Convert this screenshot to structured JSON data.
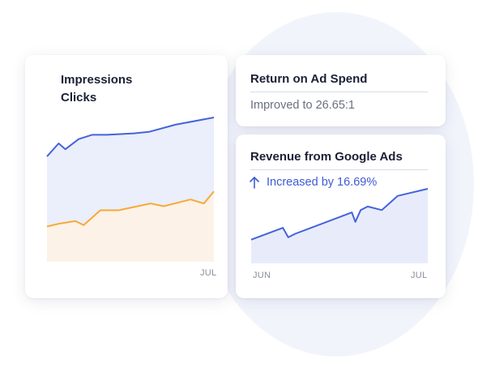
{
  "colors": {
    "impressions_line": "#4563da",
    "impressions_fill": "#ebeefb",
    "clicks_line": "#f7a935",
    "clicks_fill": "#fdf2e7",
    "revenue_line": "#4563da",
    "revenue_fill": "#e8ecfa",
    "increase_text": "#3f5bd3"
  },
  "left_card": {
    "legend": [
      "Impressions",
      "Clicks"
    ],
    "x_end_label": "JUL"
  },
  "roas_card": {
    "title": "Return on Ad Spend",
    "status": "Improved to 26.65:1"
  },
  "revenue_card": {
    "title": "Revenue from Google Ads",
    "status": "Increased by 16.69%",
    "status_icon": "arrow-up-icon",
    "x_start_label": "JUN",
    "x_end_label": "JUL"
  },
  "chart_data": [
    {
      "type": "area",
      "title": "",
      "x_labels": [
        "JUL"
      ],
      "ylim": [
        0,
        100
      ],
      "series": [
        {
          "name": "Impressions",
          "x": [
            0,
            7,
            11,
            19,
            27,
            36,
            52,
            61,
            77,
            100
          ],
          "values": [
            73,
            82,
            78,
            85,
            88,
            88,
            89,
            90,
            95,
            100
          ]
        },
        {
          "name": "Clicks",
          "x": [
            0,
            7,
            17,
            22,
            32,
            43,
            62,
            70,
            86,
            94,
            100
          ],
          "values": [
            26,
            28,
            30,
            27,
            38,
            38,
            43,
            41,
            46,
            43,
            52
          ]
        }
      ]
    },
    {
      "type": "area",
      "title": "Revenue from Google Ads",
      "x_labels": [
        "JUN",
        "JUL"
      ],
      "ylim": [
        0,
        100
      ],
      "series": [
        {
          "x": [
            0,
            18,
            21,
            25,
            57,
            59,
            62,
            66,
            74,
            83,
            100
          ],
          "values": [
            20,
            30,
            22,
            25,
            43,
            35,
            45,
            48,
            45,
            57,
            63
          ]
        }
      ]
    }
  ]
}
